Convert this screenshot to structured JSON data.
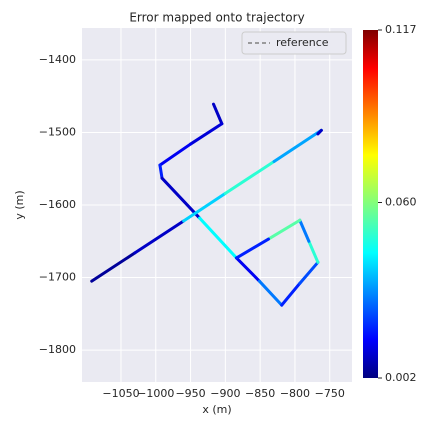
{
  "chart_data": {
    "type": "trajectory",
    "title": "Error mapped onto trajectory",
    "x_label": "x (m)",
    "y_label": "y (m)",
    "cmap": "jet",
    "legend": "upper right",
    "grid": true,
    "series": [
      {
        "name": "reference",
        "color": "#808080",
        "x": [
          -917,
          -905,
          -950,
          -994,
          -991,
          -937,
          -884,
          -851,
          -819,
          -793,
          -767,
          -780,
          -793,
          -838,
          -884,
          null,
          -1092,
          -1030,
          -960,
          -900,
          -830,
          -762,
          -767
        ],
        "y": [
          -1461,
          -1488,
          -1516,
          -1545,
          -1563,
          -1618,
          -1673,
          -1705,
          -1738,
          -1708,
          -1679,
          -1650,
          -1621,
          -1647,
          -1673,
          null,
          -1705,
          -1666,
          -1622,
          -1584,
          -1540,
          -1497,
          -1502
        ],
        "error": [
          0.01,
          0.012,
          0.015,
          0.02,
          0.01,
          0.045,
          0.015,
          0.03,
          0.02,
          0.025,
          0.05,
          0.03,
          0.055,
          0.02,
          0.01,
          null,
          0.005,
          0.01,
          0.04,
          0.05,
          0.035,
          0.01,
          0.015
        ]
      }
    ],
    "xlim": [
      -1106,
      -718
    ],
    "ylim": [
      -1844,
      -1356
    ],
    "xticks": [
      {
        "value": -1050,
        "label": "−1050"
      },
      {
        "value": -1000,
        "label": "−1000"
      },
      {
        "value": -950,
        "label": "−950"
      },
      {
        "value": -900,
        "label": "−900"
      },
      {
        "value": -850,
        "label": "−850"
      },
      {
        "value": -800,
        "label": "−800"
      },
      {
        "value": -750,
        "label": "−750"
      }
    ],
    "yticks": [
      {
        "value": -1400,
        "label": "−1400"
      },
      {
        "value": -1500,
        "label": "−1500"
      },
      {
        "value": -1600,
        "label": "−1600"
      },
      {
        "value": -1700,
        "label": "−1700"
      },
      {
        "value": -1800,
        "label": "−1800"
      }
    ],
    "clim": [
      0.002,
      0.117
    ],
    "cticks": [
      0.002,
      {
        "value": 0.06,
        "label": "0.060"
      },
      0.117
    ]
  }
}
